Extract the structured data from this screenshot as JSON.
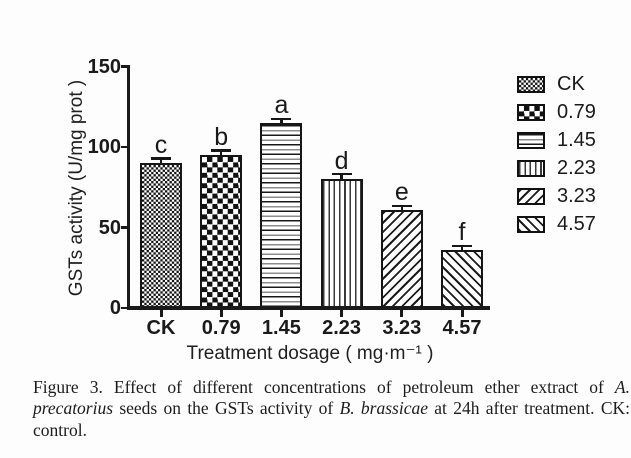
{
  "chart_data": {
    "type": "bar",
    "title": "",
    "categories": [
      "CK",
      "0.79",
      "1.45",
      "2.23",
      "3.23",
      "4.57"
    ],
    "values": [
      90,
      95,
      115,
      80,
      61,
      36
    ],
    "errors": [
      2,
      2,
      1.5,
      2.5,
      1.5,
      1.8
    ],
    "sig_letters": [
      "c",
      "b",
      "a",
      "d",
      "e",
      "f"
    ],
    "patterns": [
      "fine-checker",
      "checker",
      "hlines",
      "vlines",
      "diag-up",
      "diag-down"
    ],
    "xlabel": "Treatment dosage ( mg·m⁻¹ )",
    "ylabel": "GSTs activity (U/mg prot )",
    "ylim": [
      0,
      150
    ],
    "yticks": [
      0,
      50,
      100,
      150
    ],
    "grid": false,
    "legend": {
      "position": "right",
      "entries": [
        "CK",
        "0.79",
        "1.45",
        "2.23",
        "3.23",
        "4.57"
      ]
    }
  },
  "caption": {
    "segments": [
      {
        "text": "Figure 3. Effect of different concentrations of petroleum ether extract of ",
        "italic": false
      },
      {
        "text": "A. precatorius",
        "italic": true
      },
      {
        "text": " seeds on the GSTs activity of ",
        "italic": false
      },
      {
        "text": "B. brassicae",
        "italic": true
      },
      {
        "text": " at 24h after treatment. CK: control.",
        "italic": false
      }
    ]
  },
  "colors": {
    "ink": "#1a1a1a",
    "background": "#fdfdfd"
  }
}
